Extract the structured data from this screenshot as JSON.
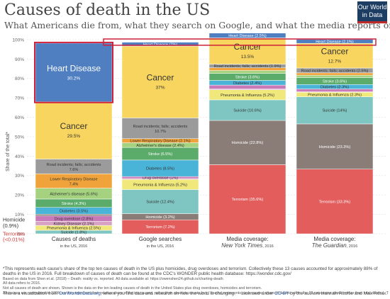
{
  "header": {
    "title": "Causes of death in the US",
    "subtitle": "What Americans die from, what they search on Google, and what the media reports on",
    "logo": "Our World in Data"
  },
  "chart_data": {
    "type": "bar",
    "stacked": true,
    "ylabel": "Share of the total*",
    "ylim": [
      0,
      100
    ],
    "yticks": [
      "0%",
      "10%",
      "20%",
      "30%",
      "40%",
      "50%",
      "60%",
      "70%",
      "80%",
      "90%",
      "100%"
    ],
    "grid": true,
    "categories": [
      {
        "label": "Causes of deaths",
        "sub": "in the US, 2016",
        "italic": false
      },
      {
        "label": "Google searches",
        "sub": "in the US, 2016",
        "italic": false
      },
      {
        "label": "Media coverage:",
        "sub": "New York Times",
        "sub2": ", 2016",
        "italic": true
      },
      {
        "label": "Media coverage:",
        "sub": "The Guardian",
        "sub2": ", 2016",
        "italic": true
      }
    ],
    "columns": [
      {
        "segments": [
          {
            "cause": "Terrorism",
            "value": 0.01
          },
          {
            "cause": "Suicide",
            "value": 1.8,
            "label": "Suicide (1.8%)"
          },
          {
            "cause": "Pneumonia & Influenza",
            "value": 2.5,
            "label": "Pneumonia & Influenza (2.5%)"
          },
          {
            "cause": "Kidney Disease",
            "value": 2.1,
            "label": "Kidney Disease (2.1%)"
          },
          {
            "cause": "Drug overdose",
            "value": 2.8,
            "label": "Drug overdose (2.8%)"
          },
          {
            "cause": "Homicide",
            "value": 0.9
          },
          {
            "cause": "Diabetes",
            "value": 3.5,
            "label": "Diabetes (3.5%)"
          },
          {
            "cause": "Stroke",
            "value": 4.3,
            "label": "Stroke (4.3%)"
          },
          {
            "cause": "Alzheimer's disease",
            "value": 5.6,
            "label": "Alzheimer's disease (5.6%)"
          },
          {
            "cause": "Lower Respiratory Disease",
            "value": 7.4,
            "label": "Lower Respiratory Disease",
            "label2": "7.4%"
          },
          {
            "cause": "Road incidents; falls; accidents",
            "value": 7.6,
            "label": "Road incidents; falls; accidents",
            "label2": "7.6%"
          },
          {
            "cause": "Cancer",
            "value": 29.5,
            "label": "Cancer",
            "label2": "29.5%"
          },
          {
            "cause": "Heart Disease",
            "value": 30.2,
            "label": "Heart Disease",
            "label2": "30.2%"
          }
        ]
      },
      {
        "segments": [
          {
            "cause": "Terrorism",
            "value": 7.2,
            "label": "Terrorism (7.2%)"
          },
          {
            "cause": "Homicide",
            "value": 3.2,
            "label": "Homicide (3.2%)"
          },
          {
            "cause": "Suicide",
            "value": 12.4,
            "label": "Suicide (12.4%)"
          },
          {
            "cause": "Pneumonia & Influenza",
            "value": 5.2,
            "label": "Pneumonia & Influenza (5.2%)"
          },
          {
            "cause": "Kidney Disease",
            "value": 0.5
          },
          {
            "cause": "Drug overdose",
            "value": 1.0,
            "label": "Drug overdose (1%)"
          },
          {
            "cause": "Diabetes",
            "value": 8.5,
            "label": "Diabetes (8.5%)"
          },
          {
            "cause": "Stroke",
            "value": 6.5,
            "label": "Stroke (6.5%)"
          },
          {
            "cause": "Alzheimer's disease",
            "value": 2.4,
            "label": "Alzheimer's disease (2.4%)"
          },
          {
            "cause": "Lower Respiratory Disease",
            "value": 2.1,
            "label": "Lower Respiratory Disease (2.1%)"
          },
          {
            "cause": "Road incidents; falls; accidents",
            "value": 10.7,
            "label": "Road incidents; falls; accidents",
            "label2": "10.7%"
          },
          {
            "cause": "Cancer",
            "value": 37.0,
            "label": "Cancer",
            "label2": "37%"
          },
          {
            "cause": "Heart Disease",
            "value": 2.0,
            "label": "Heart Disease (2%)"
          }
        ]
      },
      {
        "segments": [
          {
            "cause": "Terrorism",
            "value": 35.6,
            "label": "Terrorism (35.6%)"
          },
          {
            "cause": "Homicide",
            "value": 22.8,
            "label": "Homicide (22.8%)"
          },
          {
            "cause": "Suicide",
            "value": 10.6,
            "label": "Suicide (10.6%)"
          },
          {
            "cause": "Pneumonia & Influenza",
            "value": 5.2,
            "label": "Pneumonia & Influenza (5.2%)"
          },
          {
            "cause": "Kidney Disease",
            "value": 0.4
          },
          {
            "cause": "Drug overdose",
            "value": 2.0
          },
          {
            "cause": "Diabetes",
            "value": 2.4,
            "label": "Diabetes (2.4%)"
          },
          {
            "cause": "Stroke",
            "value": 3.6,
            "label": "Stroke (3.6%)"
          },
          {
            "cause": "Alzheimer's disease",
            "value": 1.5
          },
          {
            "cause": "Lower Respiratory Disease",
            "value": 1.4
          },
          {
            "cause": "Road incidents; falls; accidents",
            "value": 1.9,
            "label": "Road incidents; falls; accidents (1.9%)"
          },
          {
            "cause": "Cancer",
            "value": 13.5,
            "label": "Cancer",
            "label2": "13.5%"
          },
          {
            "cause": "Heart Disease",
            "value": 2.5,
            "label": "Heart Disease (2.5%)"
          }
        ]
      },
      {
        "segments": [
          {
            "cause": "Terrorism",
            "value": 33.3,
            "label": "Terrorism (33.3%)"
          },
          {
            "cause": "Homicide",
            "value": 23.3,
            "label": "Homicide (23.3%)"
          },
          {
            "cause": "Suicide",
            "value": 14.0,
            "label": "Suicide (14%)"
          },
          {
            "cause": "Pneumonia & Influenza",
            "value": 2.3,
            "label": "Pneumonia & Influenza (2.3%)"
          },
          {
            "cause": "Kidney Disease",
            "value": 0.4
          },
          {
            "cause": "Drug overdose",
            "value": 1.3
          },
          {
            "cause": "Diabetes",
            "value": 2.3,
            "label": "Diabetes (2.3%)"
          },
          {
            "cause": "Stroke",
            "value": 3.6,
            "label": "Stroke (3.6%)"
          },
          {
            "cause": "Alzheimer's disease",
            "value": 1.2
          },
          {
            "cause": "Lower Respiratory Disease",
            "value": 1.2
          },
          {
            "cause": "Road incidents; falls; accidents",
            "value": 2.5,
            "label": "Road incidents; falls; accidents (2.5%)"
          },
          {
            "cause": "Cancer",
            "value": 12.7,
            "label": "Cancer",
            "label2": "12.7%"
          },
          {
            "cause": "Heart Disease",
            "value": 2.1,
            "label": "Heart Disease (2.1%)"
          }
        ]
      }
    ],
    "colors": {
      "Terrorism": "#e35d5d",
      "Homicide": "#8a7d78",
      "Suicide": "#7fc6c2",
      "Pneumonia & Influenza": "#f1e87b",
      "Kidney Disease": "#d8a2c5",
      "Drug overdose": "#c779b8",
      "Diabetes": "#4ab4d8",
      "Stroke": "#5bab6a",
      "Alzheimer's disease": "#a4d27f",
      "Lower Respiratory Disease": "#f0a33a",
      "Road incidents; falls; accidents": "#9b9b9b",
      "Cancer": "#f8d55e",
      "Heart Disease": "#4f7fc1"
    },
    "outside_labels": [
      {
        "text": "Homicide",
        "color": "#333333",
        "col": 0,
        "at": 6.4
      },
      {
        "text": "(0.9%)",
        "color": "#333333",
        "col": 0,
        "at": 3.2
      },
      {
        "text": "Terrorism",
        "color": "#d33a3a",
        "col": 0,
        "at": -1.0
      },
      {
        "text": "(<0.01%)",
        "color": "#d33a3a",
        "col": 0,
        "at": -3.9
      }
    ],
    "highlights": [
      "Heart Disease"
    ]
  },
  "notes": {
    "main": "*This represents each cause's share of the top ten causes of death in the US plus homicides, drug overdoses and terrorism. Collectively these 13 causes accounted for approximately 88% of deaths in the US in 2016. Full breakdown of causes of death can be found at the CDC's WONDER public health database: https://wonder.cdc.gov/",
    "lines": [
      "Based on data from Shen et al. (2018) – Death: reality vs. reported. All data available at: https://owenshen24.github.io/charting-death",
      "All data refers to 2016.",
      "Not all causes of death are shown. Shown is the data on the ten leading causes of death in the United States plus drug overdoses, homicides and terrorism.",
      "All causes are normalized to 100% so they represent their relative share of the top causes, rather than absolute counts (e.g. 'deaths' represents each causes' share of deaths within the 13 categories shown rather than total deaths). The causes of death shown here account for approximately 88% of total deaths in the United States in 2016."
    ]
  },
  "footer": {
    "left_prefix": "This is a visualization from ",
    "left_link": "OurWorldinData.org",
    "left_suffix": ", where you find data and research on how the world is changing.",
    "right_prefix": "Licensed under ",
    "right_link": "CC-BY",
    "right_suffix": " by the authors Hannah Ritchie and Max Roser."
  }
}
